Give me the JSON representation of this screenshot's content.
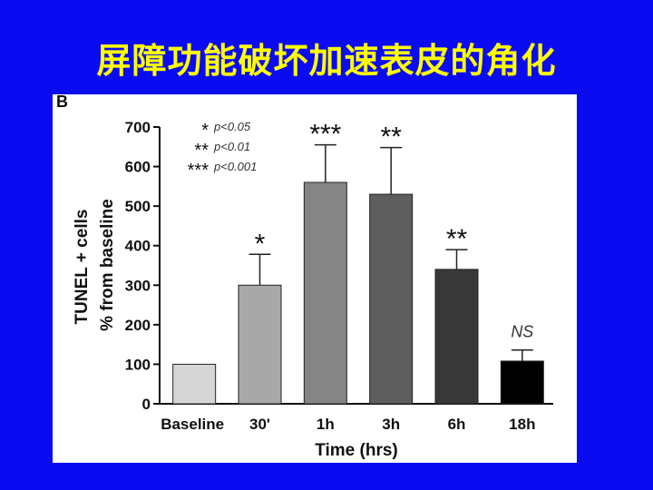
{
  "slide": {
    "title": "屏障功能破坏加速表皮的角化"
  },
  "figure": {
    "panel_label": "B",
    "legend": [
      {
        "symbol": "*",
        "text": "p<0.05"
      },
      {
        "symbol": "**",
        "text": "p<0.01"
      },
      {
        "symbol": "***",
        "text": "p<0.001"
      }
    ]
  },
  "chart_data": {
    "type": "bar",
    "categories": [
      "Baseline",
      "30'",
      "1h",
      "3h",
      "6h",
      "18h"
    ],
    "values": [
      100,
      300,
      560,
      530,
      340,
      108
    ],
    "errors": [
      0,
      78,
      95,
      118,
      50,
      28
    ],
    "annotations": [
      "",
      "*",
      "***",
      "**",
      "**",
      "NS"
    ],
    "bar_colors": [
      "#d6d6d6",
      "#a8a8a8",
      "#858585",
      "#5e5e5e",
      "#383838",
      "#000000"
    ],
    "ylabel_line1": "TUNEL + cells",
    "ylabel_line2": "% from baseline",
    "xlabel": "Time (hrs)",
    "ylim": [
      0,
      700
    ],
    "yticks": [
      0,
      100,
      200,
      300,
      400,
      500,
      600,
      700
    ],
    "grid": false
  }
}
